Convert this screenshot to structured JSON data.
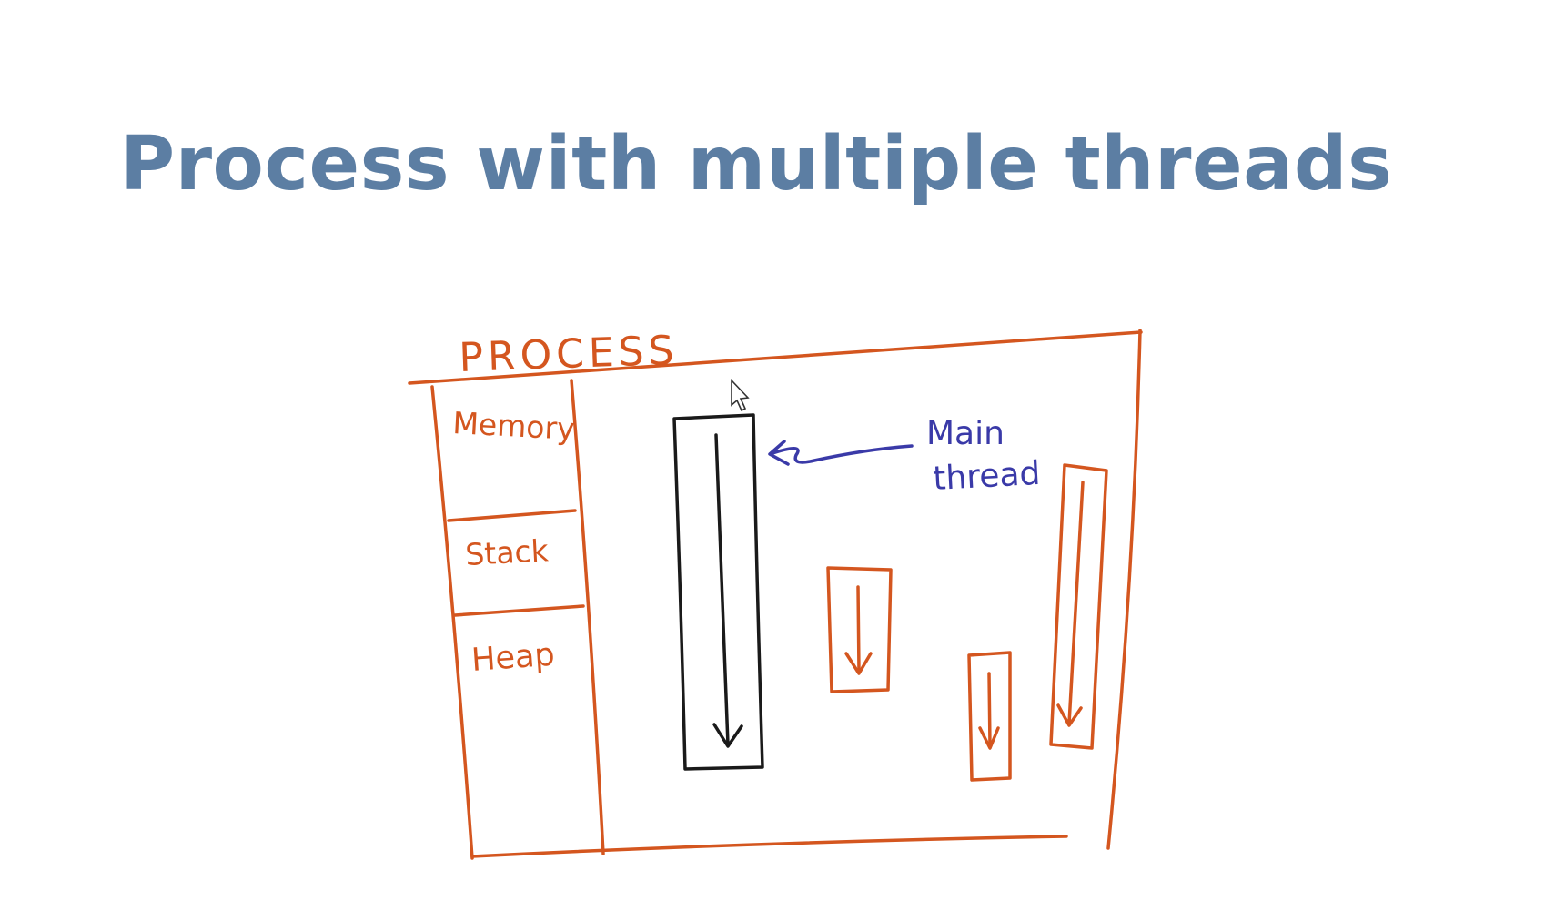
{
  "slide": {
    "title": "Process with multiple threads"
  },
  "diagram": {
    "process_label": "Process",
    "memory_sections": [
      "Memory",
      "Stack",
      "Heap"
    ],
    "main_thread_label_line1": "Main",
    "main_thread_label_line2": "thread",
    "colors": {
      "process": "#d4561f",
      "main_thread": "#1a1a1a",
      "annotation": "#3a3aa8",
      "title": "#5c7ea3"
    }
  }
}
